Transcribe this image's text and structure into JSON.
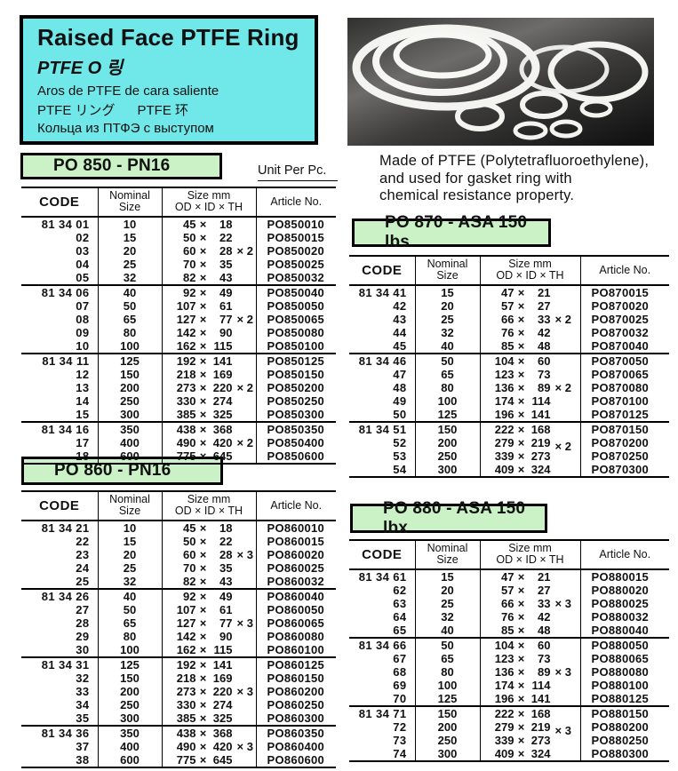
{
  "header": {
    "title_en": "Raised Face PTFE Ring",
    "title_ko": "PTFE O 링",
    "title_es": "Aros de PTFE de cara saliente",
    "title_ja_zh": "PTFE リング      PTFE 环",
    "title_ru": "Кольца из ПТФЭ с выступом"
  },
  "description": {
    "line1": "Made of PTFE (Polytetrafluoroethylene),",
    "line2": "and used for gasket ring with",
    "line3": "chemical resistance property."
  },
  "unit_label": "Unit Per Pc.",
  "photo": {
    "subject": "white PTFE O-rings on dark reflective background"
  },
  "colors": {
    "header_box_bg": "#70e8ea",
    "section_title_bg": "#cbf2c7",
    "text": "#111111",
    "photo_ring": "#f3f3ef"
  },
  "size_sep": "×",
  "table_headers": {
    "code": "CODE",
    "nominal": [
      "Nominal",
      "Size"
    ],
    "size": [
      "Size mm",
      "OD × ID × TH"
    ],
    "article": "Article No."
  },
  "tables": [
    {
      "id": "po850",
      "title": "PO 850 - PN16",
      "rows": [
        {
          "code": "81 34 01",
          "nominal": "10",
          "od": "45",
          "id": "18",
          "th": "",
          "article": "PO850010",
          "group_start": true
        },
        {
          "code": "02",
          "nominal": "15",
          "od": "50",
          "id": "22",
          "th": "",
          "article": "PO850015",
          "group_start": false
        },
        {
          "code": "03",
          "nominal": "20",
          "od": "60",
          "id": "28",
          "th": "× 2",
          "article": "PO850020",
          "group_start": false
        },
        {
          "code": "04",
          "nominal": "25",
          "od": "70",
          "id": "35",
          "th": "",
          "article": "PO850025",
          "group_start": false
        },
        {
          "code": "05",
          "nominal": "32",
          "od": "82",
          "id": "43",
          "th": "",
          "article": "PO850032",
          "group_start": false
        },
        {
          "code": "81 34 06",
          "nominal": "40",
          "od": "92",
          "id": "49",
          "th": "",
          "article": "PO850040",
          "group_start": true
        },
        {
          "code": "07",
          "nominal": "50",
          "od": "107",
          "id": "61",
          "th": "",
          "article": "PO850050",
          "group_start": false
        },
        {
          "code": "08",
          "nominal": "65",
          "od": "127",
          "id": "77",
          "th": "× 2",
          "article": "PO850065",
          "group_start": false
        },
        {
          "code": "09",
          "nominal": "80",
          "od": "142",
          "id": "90",
          "th": "",
          "article": "PO850080",
          "group_start": false
        },
        {
          "code": "10",
          "nominal": "100",
          "od": "162",
          "id": "115",
          "th": "",
          "article": "PO850100",
          "group_start": false
        },
        {
          "code": "81 34 11",
          "nominal": "125",
          "od": "192",
          "id": "141",
          "th": "",
          "article": "PO850125",
          "group_start": true
        },
        {
          "code": "12",
          "nominal": "150",
          "od": "218",
          "id": "169",
          "th": "",
          "article": "PO850150",
          "group_start": false
        },
        {
          "code": "13",
          "nominal": "200",
          "od": "273",
          "id": "220",
          "th": "× 2",
          "article": "PO850200",
          "group_start": false
        },
        {
          "code": "14",
          "nominal": "250",
          "od": "330",
          "id": "274",
          "th": "",
          "article": "PO850250",
          "group_start": false
        },
        {
          "code": "15",
          "nominal": "300",
          "od": "385",
          "id": "325",
          "th": "",
          "article": "PO850300",
          "group_start": false
        },
        {
          "code": "81 34 16",
          "nominal": "350",
          "od": "438",
          "id": "368",
          "th": "",
          "article": "PO850350",
          "group_start": true
        },
        {
          "code": "17",
          "nominal": "400",
          "od": "490",
          "id": "420",
          "th": "× 2",
          "article": "PO850400",
          "group_start": false
        },
        {
          "code": "18",
          "nominal": "600",
          "od": "775",
          "id": "645",
          "th": "",
          "article": "PO850600",
          "group_start": false
        }
      ]
    },
    {
      "id": "po860",
      "title": "PO 860 - PN16",
      "rows": [
        {
          "code": "81 34 21",
          "nominal": "10",
          "od": "45",
          "id": "18",
          "th": "",
          "article": "PO860010",
          "group_start": true
        },
        {
          "code": "22",
          "nominal": "15",
          "od": "50",
          "id": "22",
          "th": "",
          "article": "PO860015",
          "group_start": false
        },
        {
          "code": "23",
          "nominal": "20",
          "od": "60",
          "id": "28",
          "th": "× 3",
          "article": "PO860020",
          "group_start": false
        },
        {
          "code": "24",
          "nominal": "25",
          "od": "70",
          "id": "35",
          "th": "",
          "article": "PO860025",
          "group_start": false
        },
        {
          "code": "25",
          "nominal": "32",
          "od": "82",
          "id": "43",
          "th": "",
          "article": "PO860032",
          "group_start": false
        },
        {
          "code": "81 34 26",
          "nominal": "40",
          "od": "92",
          "id": "49",
          "th": "",
          "article": "PO860040",
          "group_start": true
        },
        {
          "code": "27",
          "nominal": "50",
          "od": "107",
          "id": "61",
          "th": "",
          "article": "PO860050",
          "group_start": false
        },
        {
          "code": "28",
          "nominal": "65",
          "od": "127",
          "id": "77",
          "th": "× 3",
          "article": "PO860065",
          "group_start": false
        },
        {
          "code": "29",
          "nominal": "80",
          "od": "142",
          "id": "90",
          "th": "",
          "article": "PO860080",
          "group_start": false
        },
        {
          "code": "30",
          "nominal": "100",
          "od": "162",
          "id": "115",
          "th": "",
          "article": "PO860100",
          "group_start": false
        },
        {
          "code": "81 34 31",
          "nominal": "125",
          "od": "192",
          "id": "141",
          "th": "",
          "article": "PO860125",
          "group_start": true
        },
        {
          "code": "32",
          "nominal": "150",
          "od": "218",
          "id": "169",
          "th": "",
          "article": "PO860150",
          "group_start": false
        },
        {
          "code": "33",
          "nominal": "200",
          "od": "273",
          "id": "220",
          "th": "× 3",
          "article": "PO860200",
          "group_start": false
        },
        {
          "code": "34",
          "nominal": "250",
          "od": "330",
          "id": "274",
          "th": "",
          "article": "PO860250",
          "group_start": false
        },
        {
          "code": "35",
          "nominal": "300",
          "od": "385",
          "id": "325",
          "th": "",
          "article": "PO860300",
          "group_start": false
        },
        {
          "code": "81 34 36",
          "nominal": "350",
          "od": "438",
          "id": "368",
          "th": "",
          "article": "PO860350",
          "group_start": true
        },
        {
          "code": "37",
          "nominal": "400",
          "od": "490",
          "id": "420",
          "th": "× 3",
          "article": "PO860400",
          "group_start": false
        },
        {
          "code": "38",
          "nominal": "600",
          "od": "775",
          "id": "645",
          "th": "",
          "article": "PO860600",
          "group_start": false
        }
      ]
    },
    {
      "id": "po870",
      "title": "PO 870 - ASA 150 lbs",
      "rows": [
        {
          "code": "81 34 41",
          "nominal": "15",
          "od": "47",
          "id": "21",
          "th": "",
          "article": "PO870015",
          "group_start": true
        },
        {
          "code": "42",
          "nominal": "20",
          "od": "57",
          "id": "27",
          "th": "",
          "article": "PO870020",
          "group_start": false
        },
        {
          "code": "43",
          "nominal": "25",
          "od": "66",
          "id": "33",
          "th": "× 2",
          "article": "PO870025",
          "group_start": false
        },
        {
          "code": "44",
          "nominal": "32",
          "od": "76",
          "id": "42",
          "th": "",
          "article": "PO870032",
          "group_start": false
        },
        {
          "code": "45",
          "nominal": "40",
          "od": "85",
          "id": "48",
          "th": "",
          "article": "PO870040",
          "group_start": false
        },
        {
          "code": "81 34 46",
          "nominal": "50",
          "od": "104",
          "id": "60",
          "th": "",
          "article": "PO870050",
          "group_start": true
        },
        {
          "code": "47",
          "nominal": "65",
          "od": "123",
          "id": "73",
          "th": "",
          "article": "PO870065",
          "group_start": false
        },
        {
          "code": "48",
          "nominal": "80",
          "od": "136",
          "id": "89",
          "th": "× 2",
          "article": "PO870080",
          "group_start": false
        },
        {
          "code": "49",
          "nominal": "100",
          "od": "174",
          "id": "114",
          "th": "",
          "article": "PO870100",
          "group_start": false
        },
        {
          "code": "50",
          "nominal": "125",
          "od": "196",
          "id": "141",
          "th": "",
          "article": "PO870125",
          "group_start": false
        },
        {
          "code": "81 34 51",
          "nominal": "150",
          "od": "222",
          "id": "168",
          "th": "",
          "article": "PO870150",
          "group_start": true
        },
        {
          "code": "52",
          "nominal": "200",
          "od": "279",
          "id": "219",
          "th": "× 2",
          "th_low": true,
          "article": "PO870200",
          "group_start": false
        },
        {
          "code": "53",
          "nominal": "250",
          "od": "339",
          "id": "273",
          "th": "",
          "article": "PO870250",
          "group_start": false
        },
        {
          "code": "54",
          "nominal": "300",
          "od": "409",
          "id": "324",
          "th": "",
          "article": "PO870300",
          "group_start": false
        }
      ]
    },
    {
      "id": "po880",
      "title": "PO 880 - ASA 150 lbx",
      "rows": [
        {
          "code": "81 34 61",
          "nominal": "15",
          "od": "47",
          "id": "21",
          "th": "",
          "article": "PO880015",
          "group_start": true
        },
        {
          "code": "62",
          "nominal": "20",
          "od": "57",
          "id": "27",
          "th": "",
          "article": "PO880020",
          "group_start": false
        },
        {
          "code": "63",
          "nominal": "25",
          "od": "66",
          "id": "33",
          "th": "× 3",
          "article": "PO880025",
          "group_start": false
        },
        {
          "code": "64",
          "nominal": "32",
          "od": "76",
          "id": "42",
          "th": "",
          "article": "PO880032",
          "group_start": false
        },
        {
          "code": "65",
          "nominal": "40",
          "od": "85",
          "id": "48",
          "th": "",
          "article": "PO880040",
          "group_start": false
        },
        {
          "code": "81 34 66",
          "nominal": "50",
          "od": "104",
          "id": "60",
          "th": "",
          "article": "PO880050",
          "group_start": true
        },
        {
          "code": "67",
          "nominal": "65",
          "od": "123",
          "id": "73",
          "th": "",
          "article": "PO880065",
          "group_start": false
        },
        {
          "code": "68",
          "nominal": "80",
          "od": "136",
          "id": "89",
          "th": "× 3",
          "article": "PO880080",
          "group_start": false
        },
        {
          "code": "69",
          "nominal": "100",
          "od": "174",
          "id": "114",
          "th": "",
          "article": "PO880100",
          "group_start": false
        },
        {
          "code": "70",
          "nominal": "125",
          "od": "196",
          "id": "141",
          "th": "",
          "article": "PO880125",
          "group_start": false
        },
        {
          "code": "81 34 71",
          "nominal": "150",
          "od": "222",
          "id": "168",
          "th": "",
          "article": "PO880150",
          "group_start": true
        },
        {
          "code": "72",
          "nominal": "200",
          "od": "279",
          "id": "219",
          "th": "× 3",
          "th_low": true,
          "article": "PO880200",
          "group_start": false
        },
        {
          "code": "73",
          "nominal": "250",
          "od": "339",
          "id": "273",
          "th": "",
          "article": "PO880250",
          "group_start": false
        },
        {
          "code": "74",
          "nominal": "300",
          "od": "409",
          "id": "324",
          "th": "",
          "article": "PO880300",
          "group_start": false
        }
      ]
    }
  ]
}
